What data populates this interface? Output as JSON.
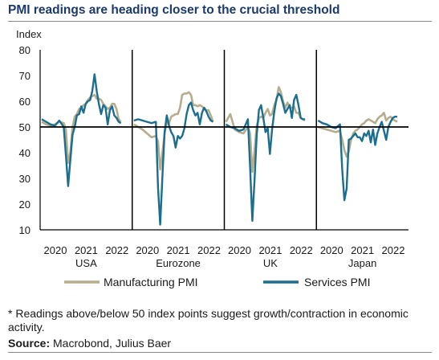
{
  "title": "PMI readings are heading closer to the crucial threshold",
  "footnote": "* Readings above/below 50 index points suggest growth/contraction in economic activity.",
  "source_label": "Source:",
  "source_text": "Macrobond, Julius Baer",
  "chart_data": {
    "type": "line",
    "ylabel": "Index",
    "ylim": [
      10,
      80
    ],
    "yticks": [
      10,
      20,
      30,
      40,
      50,
      60,
      70,
      80
    ],
    "threshold": 50,
    "x_tick_labels": [
      "2020",
      "2021",
      "2022"
    ],
    "colors": {
      "Manufacturing PMI": "#b5ad8c",
      "Services PMI": "#1b6e8f",
      "threshold": "#000000"
    },
    "legend": [
      "Manufacturing PMI",
      "Services PMI"
    ],
    "legend_position": "bottom",
    "grid": false,
    "x_domain": [
      2019.0,
      2022.75
    ],
    "panels": [
      {
        "name": "USA",
        "series": [
          {
            "name": "Manufacturing PMI",
            "x": [
              2019.0,
              2019.2,
              2019.4,
              2019.6,
              2019.8,
              2020.0,
              2020.1,
              2020.2,
              2020.3,
              2020.4,
              2020.5,
              2020.6,
              2020.7,
              2020.8,
              2020.9,
              2021.0,
              2021.1,
              2021.2,
              2021.3,
              2021.4,
              2021.5,
              2021.6,
              2021.7,
              2021.8,
              2021.9,
              2022.0,
              2022.1,
              2022.2,
              2022.3,
              2022.4,
              2022.5,
              2022.6
            ],
            "values": [
              52.0,
              51.0,
              50.5,
              51.0,
              52.0,
              51.5,
              49.0,
              36.0,
              40.0,
              50.0,
              54.0,
              55.0,
              57.0,
              57.5,
              58.5,
              59.0,
              60.5,
              61.5,
              62.0,
              62.5,
              61.0,
              61.0,
              60.5,
              59.0,
              58.0,
              57.0,
              57.5,
              59.0,
              59.0,
              57.0,
              53.0,
              52.0
            ]
          },
          {
            "name": "Services PMI",
            "x": [
              2019.0,
              2019.2,
              2019.4,
              2019.6,
              2019.8,
              2020.0,
              2020.1,
              2020.2,
              2020.3,
              2020.4,
              2020.5,
              2020.6,
              2020.7,
              2020.8,
              2020.9,
              2021.0,
              2021.1,
              2021.2,
              2021.3,
              2021.4,
              2021.5,
              2021.6,
              2021.7,
              2021.8,
              2021.9,
              2022.0,
              2022.1,
              2022.2,
              2022.3,
              2022.4,
              2022.5,
              2022.6
            ],
            "values": [
              53.0,
              52.0,
              51.0,
              50.5,
              52.5,
              50.0,
              39.0,
              27.0,
              37.0,
              47.0,
              50.0,
              54.5,
              55.0,
              58.0,
              55.5,
              59.0,
              60.0,
              60.5,
              64.0,
              70.5,
              64.0,
              59.0,
              55.0,
              58.5,
              57.5,
              51.0,
              56.5,
              58.0,
              54.5,
              53.5,
              52.0,
              51.5
            ]
          }
        ]
      },
      {
        "name": "Eurozone",
        "series": [
          {
            "name": "Manufacturing PMI",
            "x": [
              2019.0,
              2019.2,
              2019.4,
              2019.6,
              2019.8,
              2020.0,
              2020.1,
              2020.2,
              2020.3,
              2020.4,
              2020.5,
              2020.6,
              2020.7,
              2020.8,
              2020.9,
              2021.0,
              2021.1,
              2021.2,
              2021.3,
              2021.4,
              2021.5,
              2021.6,
              2021.7,
              2021.8,
              2021.9,
              2022.0,
              2022.1,
              2022.2,
              2022.3,
              2022.4,
              2022.5,
              2022.6
            ],
            "values": [
              51.0,
              50.0,
              49.0,
              47.5,
              46.0,
              46.5,
              44.5,
              33.5,
              40.0,
              47.5,
              52.0,
              51.5,
              54.0,
              54.5,
              55.0,
              55.0,
              57.5,
              62.5,
              63.0,
              63.0,
              63.5,
              62.5,
              58.5,
              58.5,
              58.0,
              58.5,
              58.0,
              57.0,
              56.5,
              56.5,
              54.5,
              52.0
            ]
          },
          {
            "name": "Services PMI",
            "x": [
              2019.0,
              2019.2,
              2019.4,
              2019.6,
              2019.8,
              2020.0,
              2020.1,
              2020.2,
              2020.3,
              2020.4,
              2020.5,
              2020.6,
              2020.7,
              2020.8,
              2020.9,
              2021.0,
              2021.1,
              2021.2,
              2021.3,
              2021.4,
              2021.5,
              2021.6,
              2021.7,
              2021.8,
              2021.9,
              2022.0,
              2022.1,
              2022.2,
              2022.3,
              2022.4,
              2022.5,
              2022.6
            ],
            "values": [
              52.5,
              53.0,
              52.5,
              52.0,
              51.5,
              52.0,
              26.5,
              12.0,
              31.0,
              48.0,
              54.5,
              50.5,
              48.0,
              46.5,
              42.0,
              46.5,
              45.5,
              46.5,
              49.5,
              55.0,
              58.5,
              59.5,
              56.5,
              54.5,
              55.5,
              51.0,
              55.5,
              57.5,
              56.0,
              54.0,
              52.5,
              52.0
            ]
          }
        ]
      },
      {
        "name": "UK",
        "series": [
          {
            "name": "Manufacturing PMI",
            "x": [
              2019.0,
              2019.2,
              2019.4,
              2019.6,
              2019.8,
              2020.0,
              2020.1,
              2020.2,
              2020.3,
              2020.4,
              2020.5,
              2020.6,
              2020.7,
              2020.8,
              2020.9,
              2021.0,
              2021.1,
              2021.2,
              2021.3,
              2021.4,
              2021.5,
              2021.6,
              2021.7,
              2021.8,
              2021.9,
              2022.0,
              2022.1,
              2022.2,
              2022.3,
              2022.4,
              2022.5,
              2022.6
            ],
            "values": [
              52.0,
              55.0,
              49.0,
              48.0,
              47.5,
              50.0,
              47.5,
              32.5,
              40.5,
              50.5,
              53.5,
              54.0,
              53.5,
              55.5,
              57.0,
              54.5,
              55.0,
              58.5,
              60.5,
              65.5,
              63.5,
              60.0,
              57.5,
              59.5,
              57.5,
              57.5,
              58.0,
              55.5,
              55.5,
              53.5,
              53.0,
              52.5
            ]
          },
          {
            "name": "Services PMI",
            "x": [
              2019.0,
              2019.2,
              2019.4,
              2019.6,
              2019.8,
              2020.0,
              2020.1,
              2020.2,
              2020.3,
              2020.4,
              2020.5,
              2020.6,
              2020.7,
              2020.8,
              2020.9,
              2021.0,
              2021.1,
              2021.2,
              2021.3,
              2021.4,
              2021.5,
              2021.6,
              2021.7,
              2021.8,
              2021.9,
              2022.0,
              2022.1,
              2022.2,
              2022.3,
              2022.4,
              2022.5,
              2022.6
            ],
            "values": [
              51.0,
              50.0,
              49.5,
              48.5,
              49.0,
              53.0,
              34.5,
              13.5,
              29.0,
              47.0,
              56.5,
              58.5,
              53.5,
              48.0,
              49.5,
              39.5,
              49.0,
              56.0,
              61.0,
              63.0,
              62.0,
              59.0,
              55.5,
              57.0,
              58.5,
              53.5,
              60.5,
              62.5,
              58.5,
              53.5,
              53.0,
              53.0
            ]
          }
        ]
      },
      {
        "name": "Japan",
        "series": [
          {
            "name": "Manufacturing PMI",
            "x": [
              2019.0,
              2019.2,
              2019.4,
              2019.6,
              2019.8,
              2020.0,
              2020.1,
              2020.2,
              2020.3,
              2020.4,
              2020.5,
              2020.6,
              2020.7,
              2020.8,
              2020.9,
              2021.0,
              2021.1,
              2021.2,
              2021.3,
              2021.4,
              2021.5,
              2021.6,
              2021.7,
              2021.8,
              2021.9,
              2022.0,
              2022.1,
              2022.2,
              2022.3,
              2022.4,
              2022.5,
              2022.6
            ],
            "values": [
              50.0,
              49.5,
              49.0,
              48.5,
              48.0,
              48.5,
              45.0,
              41.0,
              38.5,
              40.5,
              45.0,
              47.5,
              48.5,
              49.0,
              50.0,
              51.0,
              51.5,
              52.5,
              53.0,
              52.5,
              52.0,
              51.5,
              53.0,
              54.0,
              54.5,
              55.5,
              52.5,
              53.5,
              54.0,
              53.0,
              52.5,
              52.0
            ]
          },
          {
            "name": "Services PMI",
            "x": [
              2019.0,
              2019.2,
              2019.4,
              2019.6,
              2019.8,
              2020.0,
              2020.1,
              2020.2,
              2020.3,
              2020.4,
              2020.5,
              2020.6,
              2020.7,
              2020.8,
              2020.9,
              2021.0,
              2021.1,
              2021.2,
              2021.3,
              2021.4,
              2021.5,
              2021.6,
              2021.7,
              2021.8,
              2021.9,
              2022.0,
              2022.1,
              2022.2,
              2022.3,
              2022.4,
              2022.5,
              2022.6
            ],
            "values": [
              52.5,
              51.5,
              51.0,
              50.0,
              49.5,
              51.0,
              33.5,
              21.5,
              26.0,
              45.0,
              45.5,
              46.5,
              47.5,
              46.0,
              46.0,
              44.5,
              47.5,
              46.5,
              48.5,
              44.0,
              49.0,
              43.0,
              47.5,
              50.0,
              52.0,
              48.5,
              45.0,
              50.0,
              52.0,
              53.5,
              54.0,
              54.0
            ]
          }
        ]
      }
    ]
  }
}
